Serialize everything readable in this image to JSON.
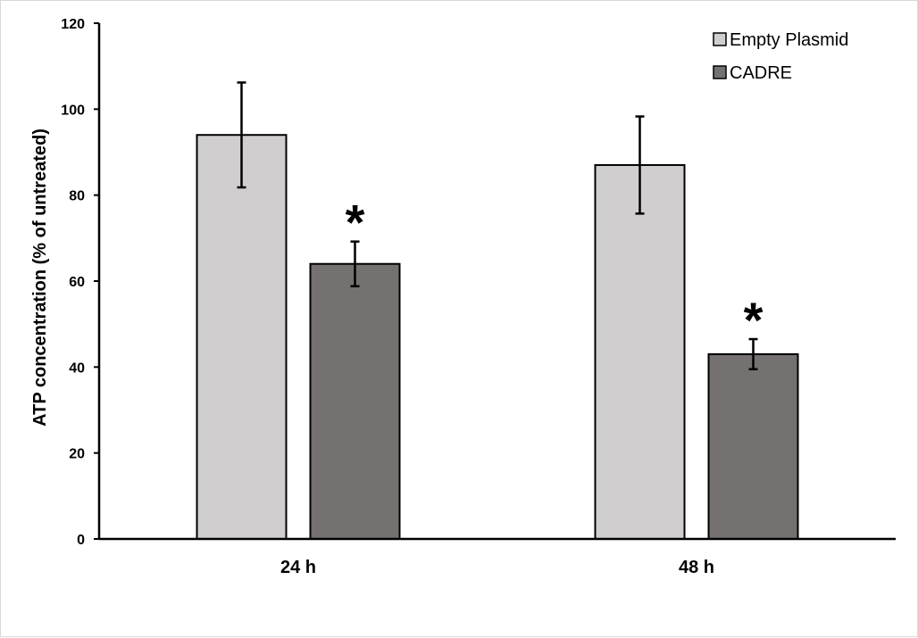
{
  "chart_data": {
    "type": "bar",
    "title": "",
    "xlabel": "",
    "ylabel": "ATP concentration (% of untreated)",
    "ylim": [
      0,
      120
    ],
    "yticks": [
      0,
      20,
      40,
      60,
      80,
      100,
      120
    ],
    "categories": [
      "24 h",
      "48 h"
    ],
    "series": [
      {
        "name": "Empty Plasmid",
        "color": "#d0cece",
        "values": [
          94,
          87
        ],
        "errors": [
          12.2,
          11.3
        ],
        "significance": [
          "",
          ""
        ]
      },
      {
        "name": "CADRE",
        "color": "#767171",
        "values": [
          64,
          43
        ],
        "errors": [
          5.2,
          3.5
        ],
        "significance": [
          "*",
          "*"
        ]
      }
    ],
    "grid": false,
    "legend_position": "top-right"
  }
}
